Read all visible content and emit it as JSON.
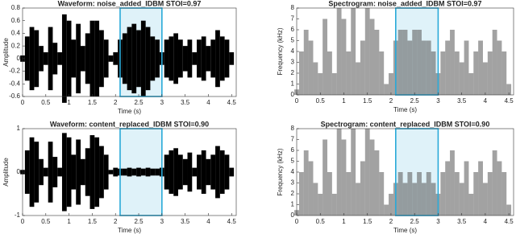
{
  "chart_data": [
    {
      "type": "waveform",
      "title": "Waveform: noise_added_IDBM  STOI=0.97",
      "x_label": "Time (s)",
      "y_label": "Amplitude",
      "x": [
        0,
        0.1,
        0.2,
        0.3,
        0.4,
        0.5,
        0.6,
        0.7,
        0.8,
        0.9,
        1,
        1.1,
        1.2,
        1.3,
        1.4,
        1.5,
        1.6,
        1.7,
        1.8,
        1.9,
        2,
        2.1,
        2.2,
        2.3,
        2.4,
        2.5,
        2.6,
        2.7,
        2.8,
        2.9,
        3,
        3.1,
        3.2,
        3.3,
        3.4,
        3.5,
        3.6,
        3.7,
        3.8,
        3.9,
        4,
        4.1,
        4.2,
        4.3,
        4.4,
        4.5
      ],
      "values": [
        0.05,
        0.35,
        0.5,
        0.45,
        0.2,
        0.1,
        0.5,
        0.25,
        0.1,
        0.7,
        0.6,
        0.3,
        0.55,
        0.2,
        0.4,
        0.6,
        0.6,
        0.45,
        0.3,
        0.05,
        0.1,
        0.3,
        0.4,
        0.5,
        0.55,
        0.45,
        0.6,
        0.5,
        0.35,
        0.3,
        0.1,
        0.3,
        0.35,
        0.4,
        0.3,
        0.2,
        0.3,
        0.1,
        0.3,
        0.35,
        0.2,
        0.3,
        0.45,
        0.35,
        0.3,
        0.1
      ],
      "color": "#000000",
      "highlight": {
        "x": [
          2.1,
          3.0
        ],
        "color": "#29a9d8"
      },
      "xlim": [
        0,
        4.6
      ],
      "xticks": [
        0,
        0.5,
        1,
        1.5,
        2,
        2.5,
        3,
        3.5,
        4,
        4.5
      ],
      "ylim": [
        -0.6,
        0.8
      ],
      "yticks": [
        -0.6,
        -0.4,
        -0.2,
        0,
        0.2,
        0.4,
        0.6,
        0.8
      ]
    },
    {
      "type": "spectrogram",
      "title": "Spectrogram: noise_added_IDBM  STOI=0.97",
      "x_label": "Time (s)",
      "y_label": "Frequency (kHz)",
      "x": [
        0,
        0.1,
        0.2,
        0.3,
        0.4,
        0.5,
        0.6,
        0.7,
        0.8,
        0.9,
        1,
        1.1,
        1.2,
        1.3,
        1.4,
        1.5,
        1.6,
        1.7,
        1.8,
        1.9,
        2,
        2.1,
        2.2,
        2.3,
        2.4,
        2.5,
        2.6,
        2.7,
        2.8,
        2.9,
        3,
        3.1,
        3.2,
        3.3,
        3.4,
        3.5,
        3.6,
        3.7,
        3.8,
        3.9,
        4,
        4.1,
        4.2,
        4.3,
        4.4,
        4.5
      ],
      "values": [
        0.5,
        4,
        6,
        5,
        3,
        2,
        7,
        4,
        2,
        8,
        7,
        4,
        8,
        3,
        5,
        8,
        7,
        6,
        4,
        1,
        2,
        5,
        6,
        6,
        5,
        6,
        6,
        5,
        5,
        4,
        2,
        4,
        5,
        6,
        4,
        3,
        5,
        2,
        4,
        5,
        3,
        4,
        6,
        5,
        4,
        1
      ],
      "color": "#555555",
      "highlight": {
        "x": [
          2.1,
          3.0
        ],
        "color": "#29a9d8"
      },
      "xlim": [
        0,
        4.6
      ],
      "xticks": [
        0,
        0.5,
        1,
        1.5,
        2,
        2.5,
        3,
        3.5,
        4,
        4.5
      ],
      "ylim": [
        0,
        8
      ],
      "yticks": [
        0,
        1,
        2,
        3,
        4,
        5,
        6,
        7,
        8
      ]
    },
    {
      "type": "waveform",
      "title": "Waveform: content_replaced_IDBM  STOI=0.90",
      "x_label": "Time (s)",
      "y_label": "Amplitude",
      "x": [
        0,
        0.1,
        0.2,
        0.3,
        0.4,
        0.5,
        0.6,
        0.7,
        0.8,
        0.9,
        1,
        1.1,
        1.2,
        1.3,
        1.4,
        1.5,
        1.6,
        1.7,
        1.8,
        1.9,
        2,
        2.1,
        2.2,
        2.3,
        2.4,
        2.5,
        2.6,
        2.7,
        2.8,
        2.9,
        3,
        3.1,
        3.2,
        3.3,
        3.4,
        3.5,
        3.6,
        3.7,
        3.8,
        3.9,
        4,
        4.1,
        4.2,
        4.3,
        4.4,
        4.5
      ],
      "values": [
        0.05,
        0.5,
        0.8,
        0.7,
        0.3,
        0.1,
        0.7,
        0.35,
        0.1,
        0.9,
        0.8,
        0.4,
        0.75,
        0.3,
        0.55,
        0.85,
        0.8,
        0.6,
        0.4,
        0.05,
        0.1,
        0.08,
        0.08,
        0.1,
        0.08,
        0.1,
        0.08,
        0.1,
        0.08,
        0.08,
        0.1,
        0.4,
        0.5,
        0.55,
        0.4,
        0.3,
        0.45,
        0.1,
        0.4,
        0.5,
        0.3,
        0.4,
        0.6,
        0.5,
        0.4,
        0.1
      ],
      "color": "#000000",
      "highlight": {
        "x": [
          2.1,
          3.0
        ],
        "color": "#29a9d8"
      },
      "xlim": [
        0,
        4.6
      ],
      "xticks": [
        0,
        0.5,
        1,
        1.5,
        2,
        2.5,
        3,
        3.5,
        4,
        4.5
      ],
      "ylim": [
        -1,
        1
      ],
      "yticks": [
        -1,
        0,
        1
      ]
    },
    {
      "type": "spectrogram",
      "title": "Spectrogram: content_replaced_IDBM  STOI=0.90",
      "x_label": "Time (s)",
      "y_label": "Frequency (kHz)",
      "x": [
        0,
        0.1,
        0.2,
        0.3,
        0.4,
        0.5,
        0.6,
        0.7,
        0.8,
        0.9,
        1,
        1.1,
        1.2,
        1.3,
        1.4,
        1.5,
        1.6,
        1.7,
        1.8,
        1.9,
        2,
        2.1,
        2.2,
        2.3,
        2.4,
        2.5,
        2.6,
        2.7,
        2.8,
        2.9,
        3,
        3.1,
        3.2,
        3.3,
        3.4,
        3.5,
        3.6,
        3.7,
        3.8,
        3.9,
        4,
        4.1,
        4.2,
        4.3,
        4.4,
        4.5
      ],
      "values": [
        0.5,
        4,
        6,
        5,
        3,
        2,
        7,
        4,
        2,
        8,
        7,
        4,
        8,
        3,
        5,
        8,
        7,
        6,
        4,
        1,
        2,
        3,
        4,
        3,
        4,
        3,
        4,
        3,
        4,
        3,
        2,
        4,
        5,
        6,
        4,
        3,
        5,
        2,
        4,
        5,
        3,
        4,
        6,
        5,
        4,
        1
      ],
      "color": "#555555",
      "highlight": {
        "x": [
          2.1,
          3.0
        ],
        "color": "#29a9d8"
      },
      "xlim": [
        0,
        4.6
      ],
      "xticks": [
        0,
        0.5,
        1,
        1.5,
        2,
        2.5,
        3,
        3.5,
        4,
        4.5
      ],
      "ylim": [
        0,
        8
      ],
      "yticks": [
        0,
        1,
        2,
        3,
        4,
        5,
        6,
        7,
        8
      ]
    }
  ]
}
